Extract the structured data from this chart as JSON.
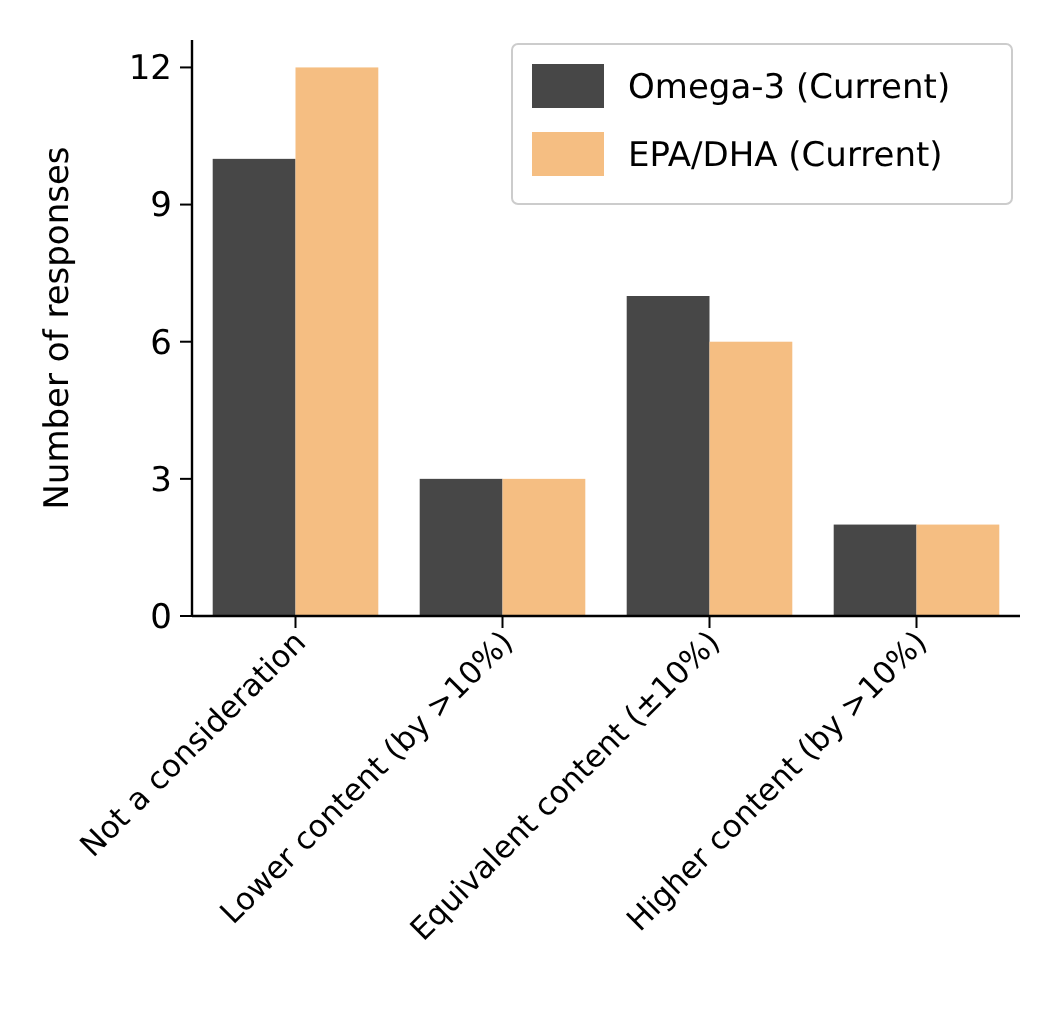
{
  "chart_data": {
    "type": "bar",
    "ylabel": "Number of responses",
    "categories": [
      "Not a consideration",
      "Lower content (by >10%)",
      "Equivalent content (±10%)",
      "Higher content (by >10%)"
    ],
    "series": [
      {
        "name": "Omega-3 (Current)",
        "color": "#474747",
        "values": [
          10,
          3,
          7,
          2
        ]
      },
      {
        "name": "EPA/DHA (Current)",
        "color": "#f5be82",
        "values": [
          12,
          3,
          6,
          2
        ]
      }
    ],
    "ylim": [
      0,
      12.6
    ],
    "yticks": [
      0,
      3,
      6,
      9,
      12
    ],
    "grid": false,
    "legend": "top right"
  }
}
